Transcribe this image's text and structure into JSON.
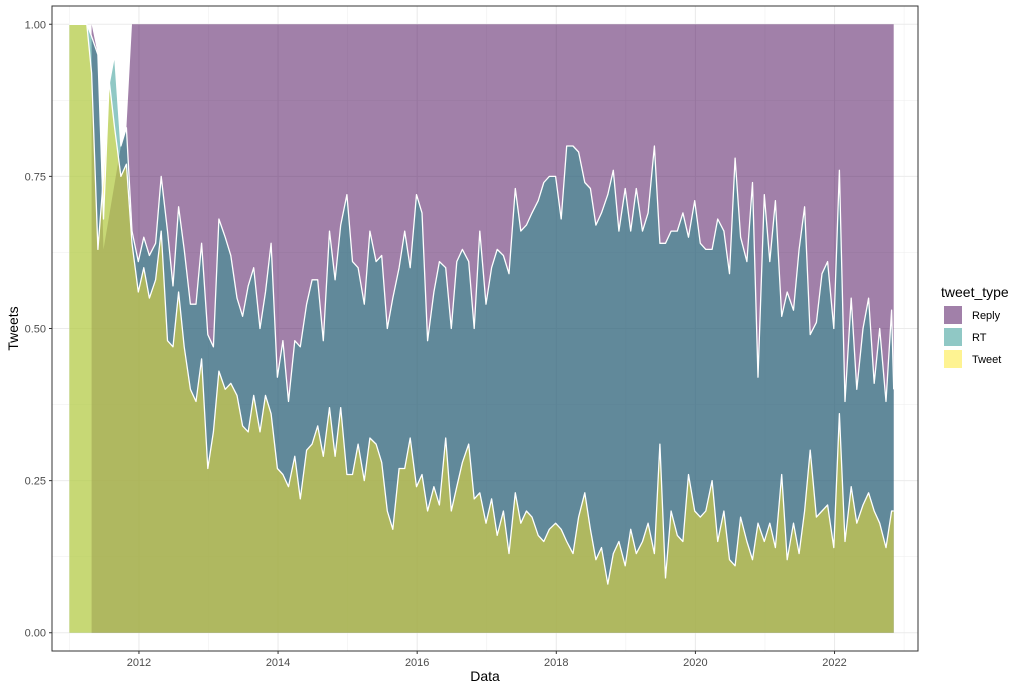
{
  "chart_data": {
    "type": "area",
    "stacked": "fill",
    "xlabel": "Data",
    "ylabel": "Tweets",
    "xlim": [
      2010.75,
      2023.2
    ],
    "ylim": [
      -0.03,
      1.03
    ],
    "x_ticks": [
      2012,
      2014,
      2016,
      2018,
      2020,
      2022
    ],
    "x_tick_labels": [
      "2012",
      "2014",
      "2016",
      "2018",
      "2020",
      "2022"
    ],
    "y_ticks": [
      0,
      0.25,
      0.5,
      0.75,
      1.0
    ],
    "y_tick_labels": [
      "0.00",
      "0.25",
      "0.50",
      "0.75",
      "1.00"
    ],
    "grid": true,
    "legend": {
      "title": "tweet_type",
      "position": "right"
    },
    "series_order_bottom_to_top": [
      "Tweet",
      "RT",
      "Reply"
    ],
    "series": [
      {
        "name": "Reply",
        "color": "#440154",
        "points": [
          [
            2011.32,
            1.0
          ],
          [
            2011.41,
            0.95
          ],
          [
            2011.49,
            0.63
          ],
          [
            2011.74,
            0.8
          ],
          [
            2011.82,
            0.83
          ],
          [
            2011.9,
            1.0
          ],
          [
            2012.17,
            1.0
          ],
          [
            2014.0,
            1.0
          ],
          [
            2016.0,
            1.0
          ],
          [
            2018.0,
            1.0
          ],
          [
            2020.0,
            1.0
          ],
          [
            2022.0,
            1.0
          ],
          [
            2022.85,
            1.0
          ]
        ]
      },
      {
        "name": "RT",
        "color": "#21918c",
        "points": [
          [
            2011.0,
            1.0
          ],
          [
            2011.25,
            1.0
          ],
          [
            2011.32,
            0.98
          ],
          [
            2011.41,
            0.95
          ],
          [
            2011.49,
            0.68
          ],
          [
            2011.57,
            0.9
          ],
          [
            2011.65,
            0.95
          ],
          [
            2011.74,
            0.8
          ],
          [
            2011.82,
            0.83
          ],
          [
            2011.9,
            0.66
          ],
          [
            2011.99,
            0.61
          ],
          [
            2012.07,
            0.65
          ],
          [
            2012.15,
            0.62
          ],
          [
            2012.24,
            0.64
          ],
          [
            2012.32,
            0.75
          ],
          [
            2012.41,
            0.66
          ],
          [
            2012.49,
            0.57
          ],
          [
            2012.57,
            0.7
          ],
          [
            2012.65,
            0.63
          ],
          [
            2012.74,
            0.54
          ],
          [
            2012.82,
            0.54
          ],
          [
            2012.9,
            0.64
          ],
          [
            2012.99,
            0.49
          ],
          [
            2013.07,
            0.47
          ],
          [
            2013.15,
            0.68
          ],
          [
            2013.24,
            0.65
          ],
          [
            2013.32,
            0.62
          ],
          [
            2013.41,
            0.55
          ],
          [
            2013.49,
            0.52
          ],
          [
            2013.57,
            0.57
          ],
          [
            2013.65,
            0.6
          ],
          [
            2013.74,
            0.5
          ],
          [
            2013.82,
            0.56
          ],
          [
            2013.9,
            0.64
          ],
          [
            2013.99,
            0.42
          ],
          [
            2014.07,
            0.48
          ],
          [
            2014.15,
            0.38
          ],
          [
            2014.24,
            0.48
          ],
          [
            2014.32,
            0.47
          ],
          [
            2014.41,
            0.54
          ],
          [
            2014.49,
            0.58
          ],
          [
            2014.57,
            0.58
          ],
          [
            2014.65,
            0.48
          ],
          [
            2014.74,
            0.66
          ],
          [
            2014.82,
            0.58
          ],
          [
            2014.9,
            0.67
          ],
          [
            2014.99,
            0.72
          ],
          [
            2015.07,
            0.61
          ],
          [
            2015.15,
            0.6
          ],
          [
            2015.24,
            0.54
          ],
          [
            2015.32,
            0.66
          ],
          [
            2015.41,
            0.61
          ],
          [
            2015.49,
            0.62
          ],
          [
            2015.57,
            0.5
          ],
          [
            2015.65,
            0.55
          ],
          [
            2015.74,
            0.6
          ],
          [
            2015.82,
            0.66
          ],
          [
            2015.9,
            0.6
          ],
          [
            2015.99,
            0.72
          ],
          [
            2016.07,
            0.69
          ],
          [
            2016.15,
            0.48
          ],
          [
            2016.24,
            0.56
          ],
          [
            2016.32,
            0.61
          ],
          [
            2016.41,
            0.6
          ],
          [
            2016.49,
            0.5
          ],
          [
            2016.57,
            0.61
          ],
          [
            2016.65,
            0.63
          ],
          [
            2016.74,
            0.61
          ],
          [
            2016.82,
            0.5
          ],
          [
            2016.9,
            0.66
          ],
          [
            2016.99,
            0.54
          ],
          [
            2017.07,
            0.6
          ],
          [
            2017.15,
            0.63
          ],
          [
            2017.24,
            0.62
          ],
          [
            2017.32,
            0.59
          ],
          [
            2017.41,
            0.73
          ],
          [
            2017.49,
            0.66
          ],
          [
            2017.57,
            0.67
          ],
          [
            2017.65,
            0.69
          ],
          [
            2017.74,
            0.71
          ],
          [
            2017.82,
            0.74
          ],
          [
            2017.9,
            0.75
          ],
          [
            2017.99,
            0.75
          ],
          [
            2018.07,
            0.68
          ],
          [
            2018.15,
            0.8
          ],
          [
            2018.24,
            0.8
          ],
          [
            2018.32,
            0.79
          ],
          [
            2018.41,
            0.74
          ],
          [
            2018.49,
            0.73
          ],
          [
            2018.57,
            0.67
          ],
          [
            2018.65,
            0.69
          ],
          [
            2018.74,
            0.72
          ],
          [
            2018.82,
            0.76
          ],
          [
            2018.9,
            0.66
          ],
          [
            2018.99,
            0.73
          ],
          [
            2019.07,
            0.66
          ],
          [
            2019.15,
            0.73
          ],
          [
            2019.24,
            0.66
          ],
          [
            2019.32,
            0.69
          ],
          [
            2019.41,
            0.8
          ],
          [
            2019.49,
            0.64
          ],
          [
            2019.57,
            0.64
          ],
          [
            2019.65,
            0.66
          ],
          [
            2019.74,
            0.66
          ],
          [
            2019.82,
            0.69
          ],
          [
            2019.9,
            0.65
          ],
          [
            2019.99,
            0.71
          ],
          [
            2020.07,
            0.64
          ],
          [
            2020.15,
            0.63
          ],
          [
            2020.24,
            0.63
          ],
          [
            2020.32,
            0.68
          ],
          [
            2020.41,
            0.66
          ],
          [
            2020.49,
            0.59
          ],
          [
            2020.57,
            0.78
          ],
          [
            2020.65,
            0.65
          ],
          [
            2020.74,
            0.61
          ],
          [
            2020.82,
            0.74
          ],
          [
            2020.9,
            0.42
          ],
          [
            2020.99,
            0.72
          ],
          [
            2021.07,
            0.61
          ],
          [
            2021.15,
            0.71
          ],
          [
            2021.24,
            0.52
          ],
          [
            2021.32,
            0.56
          ],
          [
            2021.41,
            0.53
          ],
          [
            2021.49,
            0.63
          ],
          [
            2021.57,
            0.7
          ],
          [
            2021.65,
            0.49
          ],
          [
            2021.74,
            0.51
          ],
          [
            2021.82,
            0.59
          ],
          [
            2021.9,
            0.61
          ],
          [
            2021.99,
            0.5
          ],
          [
            2022.07,
            0.76
          ],
          [
            2022.15,
            0.38
          ],
          [
            2022.24,
            0.55
          ],
          [
            2022.32,
            0.4
          ],
          [
            2022.41,
            0.5
          ],
          [
            2022.49,
            0.55
          ],
          [
            2022.57,
            0.41
          ],
          [
            2022.65,
            0.5
          ],
          [
            2022.74,
            0.38
          ],
          [
            2022.82,
            0.53
          ],
          [
            2022.85,
            0.4
          ]
        ]
      },
      {
        "name": "Tweet",
        "color": "#fde725",
        "points": [
          [
            2011.0,
            1.0
          ],
          [
            2011.25,
            1.0
          ],
          [
            2011.32,
            0.92
          ],
          [
            2011.41,
            0.63
          ],
          [
            2011.49,
            0.75
          ],
          [
            2011.57,
            0.91
          ],
          [
            2011.65,
            0.83
          ],
          [
            2011.74,
            0.75
          ],
          [
            2011.82,
            0.77
          ],
          [
            2011.9,
            0.64
          ],
          [
            2011.99,
            0.56
          ],
          [
            2012.07,
            0.6
          ],
          [
            2012.15,
            0.55
          ],
          [
            2012.24,
            0.58
          ],
          [
            2012.32,
            0.66
          ],
          [
            2012.41,
            0.48
          ],
          [
            2012.49,
            0.47
          ],
          [
            2012.57,
            0.56
          ],
          [
            2012.65,
            0.47
          ],
          [
            2012.74,
            0.4
          ],
          [
            2012.82,
            0.38
          ],
          [
            2012.9,
            0.45
          ],
          [
            2012.99,
            0.27
          ],
          [
            2013.07,
            0.33
          ],
          [
            2013.15,
            0.43
          ],
          [
            2013.24,
            0.4
          ],
          [
            2013.32,
            0.41
          ],
          [
            2013.41,
            0.39
          ],
          [
            2013.49,
            0.34
          ],
          [
            2013.57,
            0.33
          ],
          [
            2013.65,
            0.39
          ],
          [
            2013.74,
            0.33
          ],
          [
            2013.82,
            0.39
          ],
          [
            2013.9,
            0.36
          ],
          [
            2013.99,
            0.27
          ],
          [
            2014.07,
            0.26
          ],
          [
            2014.15,
            0.24
          ],
          [
            2014.24,
            0.29
          ],
          [
            2014.32,
            0.22
          ],
          [
            2014.41,
            0.3
          ],
          [
            2014.49,
            0.31
          ],
          [
            2014.57,
            0.34
          ],
          [
            2014.65,
            0.29
          ],
          [
            2014.74,
            0.37
          ],
          [
            2014.82,
            0.29
          ],
          [
            2014.9,
            0.37
          ],
          [
            2014.99,
            0.26
          ],
          [
            2015.07,
            0.26
          ],
          [
            2015.15,
            0.31
          ],
          [
            2015.24,
            0.25
          ],
          [
            2015.32,
            0.32
          ],
          [
            2015.41,
            0.31
          ],
          [
            2015.49,
            0.28
          ],
          [
            2015.57,
            0.2
          ],
          [
            2015.65,
            0.17
          ],
          [
            2015.74,
            0.27
          ],
          [
            2015.82,
            0.27
          ],
          [
            2015.9,
            0.32
          ],
          [
            2015.99,
            0.24
          ],
          [
            2016.07,
            0.26
          ],
          [
            2016.15,
            0.2
          ],
          [
            2016.24,
            0.24
          ],
          [
            2016.32,
            0.21
          ],
          [
            2016.41,
            0.32
          ],
          [
            2016.49,
            0.2
          ],
          [
            2016.57,
            0.24
          ],
          [
            2016.65,
            0.28
          ],
          [
            2016.74,
            0.31
          ],
          [
            2016.82,
            0.22
          ],
          [
            2016.9,
            0.23
          ],
          [
            2016.99,
            0.18
          ],
          [
            2017.07,
            0.22
          ],
          [
            2017.15,
            0.16
          ],
          [
            2017.24,
            0.2
          ],
          [
            2017.32,
            0.13
          ],
          [
            2017.41,
            0.23
          ],
          [
            2017.49,
            0.18
          ],
          [
            2017.57,
            0.2
          ],
          [
            2017.65,
            0.19
          ],
          [
            2017.74,
            0.16
          ],
          [
            2017.82,
            0.15
          ],
          [
            2017.9,
            0.17
          ],
          [
            2017.99,
            0.18
          ],
          [
            2018.07,
            0.17
          ],
          [
            2018.15,
            0.15
          ],
          [
            2018.24,
            0.13
          ],
          [
            2018.32,
            0.19
          ],
          [
            2018.41,
            0.23
          ],
          [
            2018.49,
            0.17
          ],
          [
            2018.57,
            0.12
          ],
          [
            2018.65,
            0.14
          ],
          [
            2018.74,
            0.08
          ],
          [
            2018.82,
            0.13
          ],
          [
            2018.9,
            0.15
          ],
          [
            2018.99,
            0.11
          ],
          [
            2019.07,
            0.17
          ],
          [
            2019.15,
            0.13
          ],
          [
            2019.24,
            0.15
          ],
          [
            2019.32,
            0.18
          ],
          [
            2019.41,
            0.13
          ],
          [
            2019.49,
            0.31
          ],
          [
            2019.57,
            0.09
          ],
          [
            2019.65,
            0.2
          ],
          [
            2019.74,
            0.16
          ],
          [
            2019.82,
            0.15
          ],
          [
            2019.9,
            0.26
          ],
          [
            2019.99,
            0.2
          ],
          [
            2020.07,
            0.19
          ],
          [
            2020.15,
            0.2
          ],
          [
            2020.24,
            0.25
          ],
          [
            2020.32,
            0.15
          ],
          [
            2020.41,
            0.2
          ],
          [
            2020.49,
            0.12
          ],
          [
            2020.57,
            0.11
          ],
          [
            2020.65,
            0.19
          ],
          [
            2020.74,
            0.15
          ],
          [
            2020.82,
            0.12
          ],
          [
            2020.9,
            0.18
          ],
          [
            2020.99,
            0.15
          ],
          [
            2021.07,
            0.18
          ],
          [
            2021.15,
            0.14
          ],
          [
            2021.24,
            0.26
          ],
          [
            2021.32,
            0.12
          ],
          [
            2021.41,
            0.18
          ],
          [
            2021.49,
            0.13
          ],
          [
            2021.57,
            0.2
          ],
          [
            2021.65,
            0.3
          ],
          [
            2021.74,
            0.19
          ],
          [
            2021.82,
            0.2
          ],
          [
            2021.9,
            0.21
          ],
          [
            2021.99,
            0.14
          ],
          [
            2022.07,
            0.36
          ],
          [
            2022.15,
            0.15
          ],
          [
            2022.24,
            0.24
          ],
          [
            2022.32,
            0.18
          ],
          [
            2022.41,
            0.21
          ],
          [
            2022.49,
            0.23
          ],
          [
            2022.57,
            0.2
          ],
          [
            2022.65,
            0.18
          ],
          [
            2022.74,
            0.14
          ],
          [
            2022.82,
            0.2
          ],
          [
            2022.85,
            0.2
          ]
        ]
      }
    ]
  }
}
